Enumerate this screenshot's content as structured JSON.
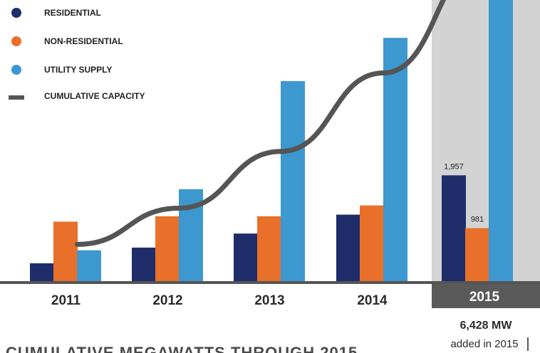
{
  "chart_data": {
    "type": "bar",
    "categories": [
      "2011",
      "2012",
      "2013",
      "2014",
      "2015"
    ],
    "series": [
      {
        "name": "RESIDENTIAL",
        "color": "#1f2d6b",
        "values": [
          330,
          620,
          880,
          1230,
          1957
        ]
      },
      {
        "name": "NON-RESIDENTIAL",
        "color": "#e8702a",
        "values": [
          1100,
          1200,
          1200,
          1400,
          981
        ]
      },
      {
        "name": "UTILITY SUPPLY",
        "color": "#3d98cf",
        "values": [
          570,
          1700,
          3700,
          4500,
          5200
        ]
      }
    ],
    "line_series": {
      "name": "CUMULATIVE CAPACITY",
      "color": "#555555",
      "values": [
        680,
        1350,
        2400,
        3850,
        6000
      ]
    },
    "ylim": [
      0,
      5200
    ],
    "legend_position": "top-left",
    "highlight_category": "2015",
    "data_labels": [
      {
        "series": "RESIDENTIAL",
        "category": "2015",
        "text": "1,957"
      },
      {
        "series": "NON-RESIDENTIAL",
        "category": "2015",
        "text": "981"
      }
    ],
    "annotation": {
      "value": "6,428 MW",
      "text": "added in 2015"
    },
    "footer_title": "CUMULATIVE MEGAWATTS THROUGH 2015"
  },
  "colors": {
    "highlight_band": "#d3d3d3",
    "axis": "#555555",
    "year_box": "#5a5a5a"
  }
}
